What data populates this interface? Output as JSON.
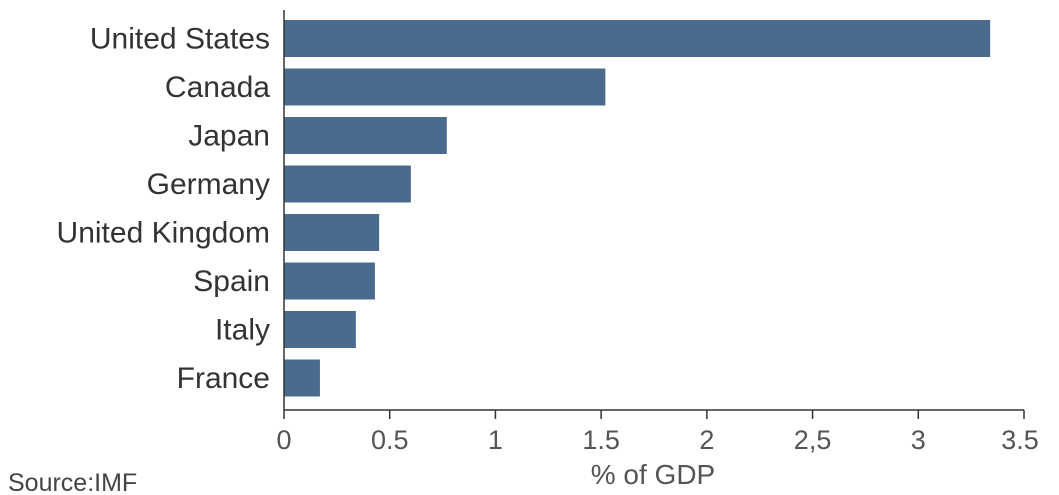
{
  "chart_data": {
    "type": "bar",
    "orientation": "horizontal",
    "categories": [
      "United States",
      "Canada",
      "Japan",
      "Germany",
      "United Kingdom",
      "Spain",
      "Italy",
      "France"
    ],
    "values": [
      3.34,
      1.52,
      0.77,
      0.6,
      0.45,
      0.43,
      0.34,
      0.17
    ],
    "xlabel": "% of GDP",
    "ylabel": "",
    "xlim": [
      0,
      3.5
    ],
    "xticks": [
      0,
      0.5,
      1,
      1.5,
      2,
      2.5,
      3,
      3.5
    ],
    "xtick_labels": [
      "0",
      "0.5",
      "1",
      "1.5",
      "2",
      "2,5",
      "3",
      "3.5"
    ],
    "grid": false,
    "bar_color": "#4a6b8e",
    "source": "Source:IMF"
  }
}
